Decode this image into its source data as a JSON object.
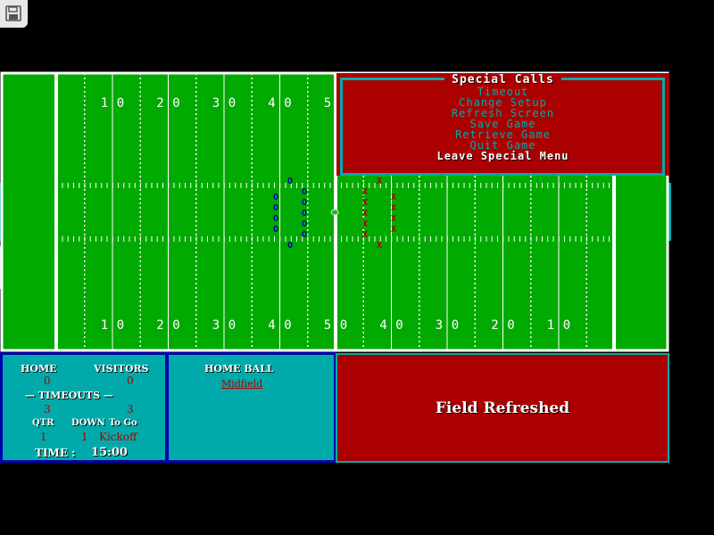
{
  "colors": {
    "field": "#00aa00",
    "red": "#aa0000",
    "teal": "#00aaaa",
    "blue": "#0000aa",
    "home_player": "#0000aa",
    "visitor_player": "#aa0000"
  },
  "field": {
    "top_numbers": [
      "1",
      "0",
      "2",
      "0",
      "3",
      "0",
      "4",
      "0",
      "5"
    ],
    "bottom_numbers": [
      "1",
      "0",
      "2",
      "0",
      "3",
      "0",
      "4",
      "0",
      "5",
      "0",
      "4",
      "0",
      "3",
      "0",
      "2",
      "0",
      "1",
      "0"
    ],
    "home_marker": "O",
    "visitor_marker": "X"
  },
  "menu": {
    "title": "Special Calls",
    "items": [
      {
        "label": "Timeout",
        "selected": false
      },
      {
        "label": "Change Setup",
        "selected": false
      },
      {
        "label": "Refresh Screen",
        "selected": false
      },
      {
        "label": "Save Game",
        "selected": false
      },
      {
        "label": "Retrieve Game",
        "selected": false
      },
      {
        "label": "Quit Game",
        "selected": false
      },
      {
        "label": "Leave Special Menu",
        "selected": true
      }
    ]
  },
  "scoreboard": {
    "home_label": "HOME",
    "visitors_label": "VISITORS",
    "home_score": "0",
    "visitors_score": "0",
    "timeouts_label": "— TIMEOUTS —",
    "home_timeouts": "3",
    "visitors_timeouts": "3",
    "qtr_label": "QTR",
    "down_label": "DOWN",
    "togo_label": "To Go",
    "qtr": "1",
    "down": "1",
    "togo": "Kickoff",
    "time_label": "TIME :",
    "time": "15:00"
  },
  "possession": {
    "title": "HOME BALL",
    "location": "Midfield"
  },
  "message": "Field Refreshed",
  "icons": {
    "save": "floppy-disk-icon",
    "sidebar": "chevron-right-icon"
  }
}
